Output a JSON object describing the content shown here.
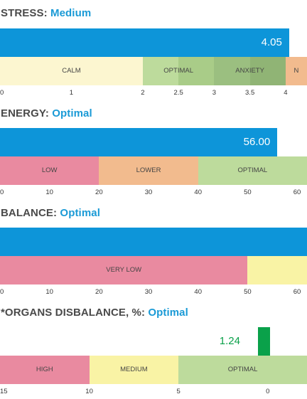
{
  "colors": {
    "bar": "#0d95d9",
    "accent_text": "#1a9ad6",
    "calm": "#fcf6d0",
    "optimal": "#bddb9c",
    "optimal_dark": "#a9cc88",
    "anxiety": "#9bbf80",
    "lower": "#f2bb8e",
    "low": "#e98aa0",
    "medium_yellow": "#f9f3a5",
    "organ_marker": "#0aa14a"
  },
  "stress": {
    "label": "STRESS:",
    "status": "Medium",
    "value": 4.05,
    "value_text": "4.05",
    "scale_min": 0,
    "scale_max": 4.3,
    "bands": [
      {
        "label": "CALM",
        "from": 0,
        "to": 2
      },
      {
        "label": "OPTIMAL",
        "from": 2,
        "to": 3
      },
      {
        "label": "ANXIETY",
        "from": 3,
        "to": 4
      },
      {
        "label": "N",
        "from": 4,
        "to": 4.3
      }
    ],
    "ticks": [
      "0",
      "1",
      "2",
      "2.5",
      "3",
      "3.5",
      "4"
    ]
  },
  "energy": {
    "label": "ENERGY:",
    "status": "Optimal",
    "value": 56,
    "value_text": "56.00",
    "scale_min": 0,
    "scale_max": 62,
    "bands": [
      {
        "label": "LOW",
        "from": 0,
        "to": 20
      },
      {
        "label": "LOWER",
        "from": 20,
        "to": 40
      },
      {
        "label": "OPTIMAL",
        "from": 40,
        "to": 62
      }
    ],
    "ticks": [
      "0",
      "10",
      "20",
      "30",
      "40",
      "50",
      "60"
    ]
  },
  "balance": {
    "label": "BALANCE:",
    "status": "Optimal",
    "value": 62,
    "scale_min": 0,
    "scale_max": 62,
    "bands": [
      {
        "label": "VERY LOW",
        "from": 0,
        "to": 50
      },
      {
        "label": "",
        "from": 50,
        "to": 62
      }
    ],
    "ticks": [
      "0",
      "10",
      "20",
      "30",
      "40",
      "50",
      "60"
    ]
  },
  "organs": {
    "label": "*ORGANS DISBALANCE, %:",
    "status": "Optimal",
    "value": 1.24,
    "value_text": "1.24",
    "scale_left": 15,
    "scale_right": -2.2,
    "bands": [
      {
        "label": "HIGH",
        "from": 15,
        "to": 10
      },
      {
        "label": "MEDIUM",
        "from": 10,
        "to": 5
      },
      {
        "label": "OPTIMAL",
        "from": 5,
        "to": -2.2
      }
    ],
    "ticks": [
      "15",
      "10",
      "5",
      "0"
    ]
  }
}
